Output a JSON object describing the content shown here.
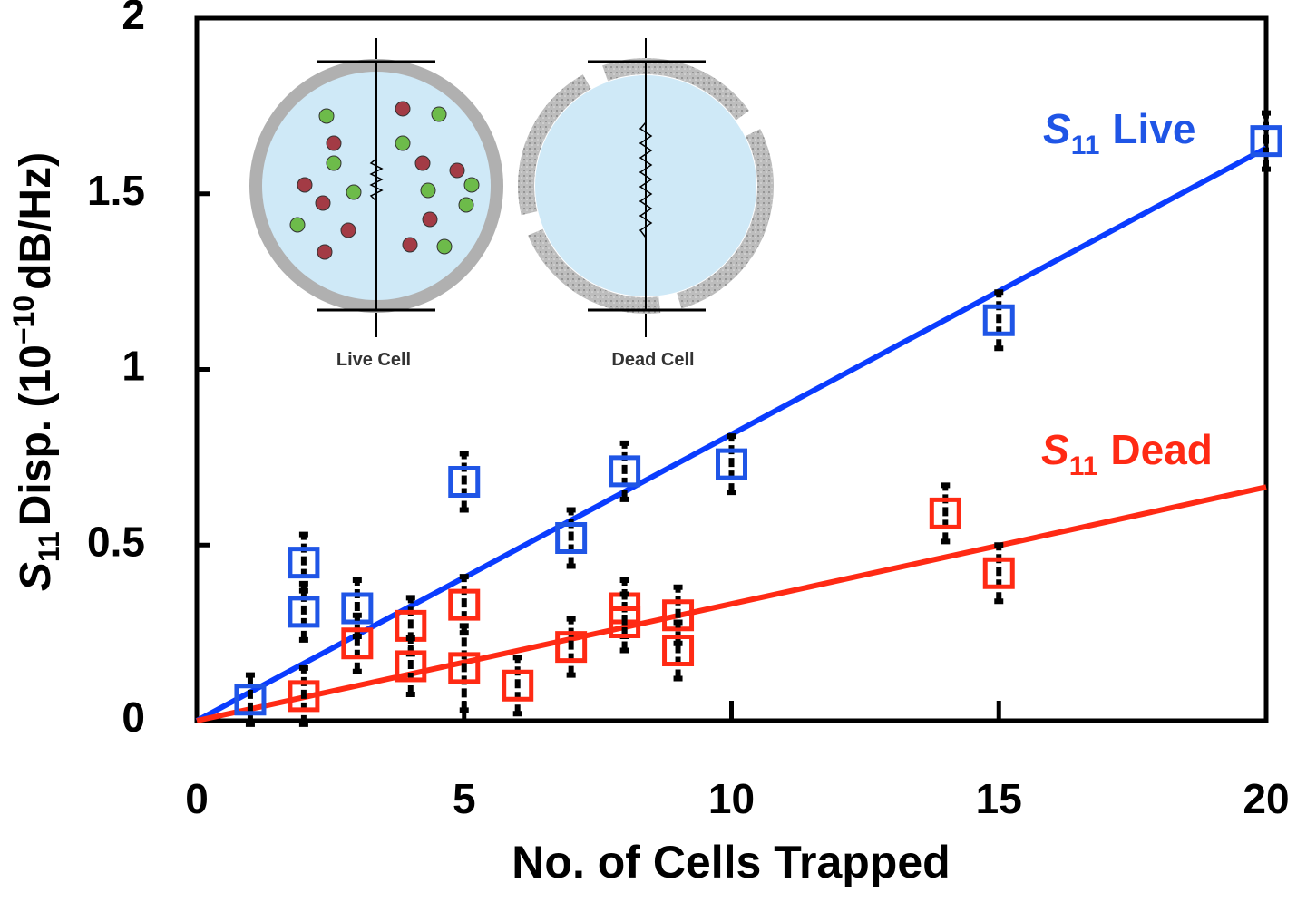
{
  "chart_data": {
    "type": "scatter",
    "x_label": "No. of Cells Trapped",
    "y_label": {
      "symbol": "S",
      "subscript": "11",
      "text": "Disp. (10",
      "exponent": "−10",
      "unit": "dB/Hz)"
    },
    "xlim": [
      0,
      20
    ],
    "xticks": [
      0,
      5,
      10,
      15,
      20
    ],
    "ylim": [
      0,
      2
    ],
    "yticks": [
      0,
      0.5,
      1,
      1.5,
      2
    ],
    "legend_symbol": "S",
    "legend_subscript": "11",
    "series": [
      {
        "name": "Live",
        "color": "#1f55e6",
        "x": [
          1,
          2,
          2,
          3,
          5,
          7,
          8,
          10,
          15,
          20
        ],
        "values": [
          0.06,
          0.45,
          0.31,
          0.32,
          0.68,
          0.52,
          0.71,
          0.73,
          1.14,
          1.65
        ],
        "errors": [
          0.07,
          0.08,
          0.08,
          0.08,
          0.08,
          0.08,
          0.08,
          0.08,
          0.08,
          0.08
        ]
      },
      {
        "name": "Dead",
        "color": "#ff2a14",
        "x": [
          2,
          3,
          4,
          4,
          5,
          5,
          6,
          7,
          8,
          8,
          9,
          9,
          14,
          15
        ],
        "values": [
          0.07,
          0.22,
          0.27,
          0.155,
          0.33,
          0.15,
          0.1,
          0.21,
          0.32,
          0.28,
          0.3,
          0.2,
          0.59,
          0.42
        ],
        "errors": [
          0.08,
          0.08,
          0.08,
          0.08,
          0.08,
          0.12,
          0.08,
          0.08,
          0.08,
          0.08,
          0.08,
          0.08,
          0.08,
          0.08
        ]
      }
    ],
    "fits": [
      {
        "color": "#0a3cff",
        "x": [
          0,
          20
        ],
        "values": [
          0,
          1.63
        ]
      },
      {
        "color": "#ff2a14",
        "x": [
          0,
          20
        ],
        "values": [
          0,
          0.665
        ]
      }
    ],
    "inset": {
      "labels": [
        "Live Cell",
        "Dead Cell"
      ]
    }
  }
}
